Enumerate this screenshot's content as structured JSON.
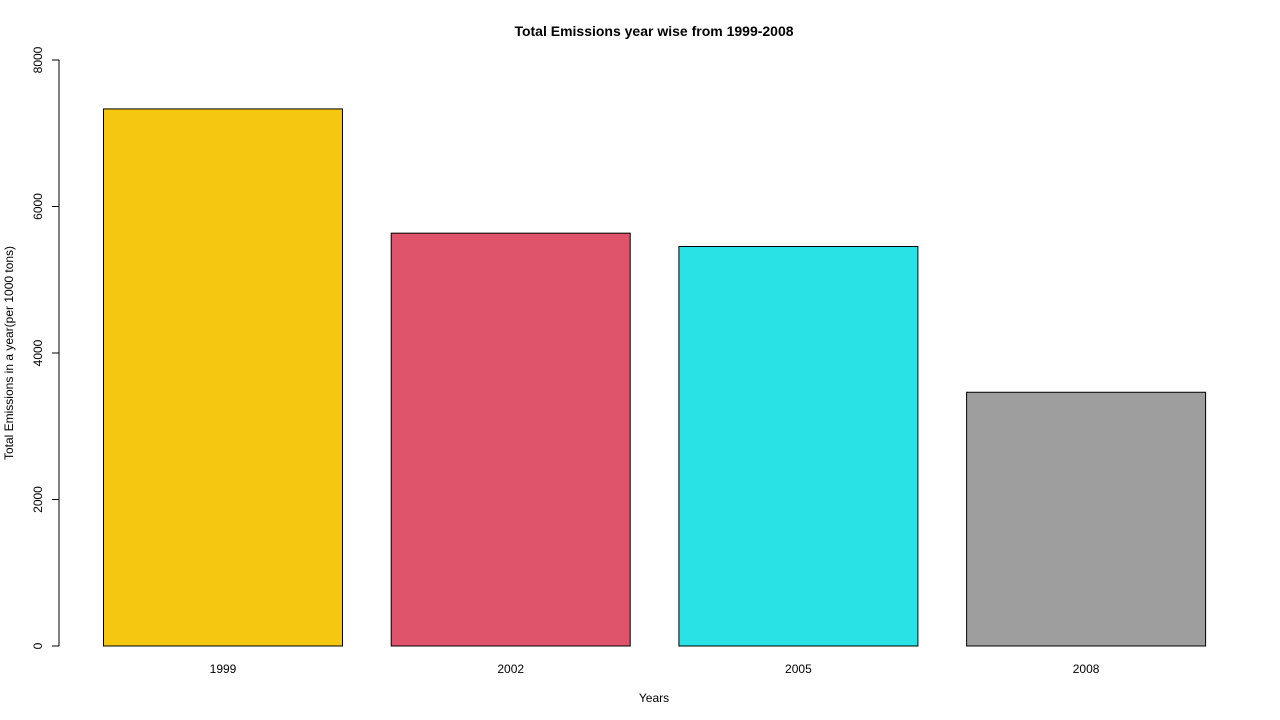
{
  "chart_data": {
    "type": "bar",
    "title": "Total Emissions year wise from 1999-2008",
    "xlabel": "Years",
    "ylabel": "Total Emissions in a year(per 1000 tons)",
    "categories": [
      "1999",
      "2002",
      "2005",
      "2008"
    ],
    "values": [
      7332,
      5636,
      5454,
      3464
    ],
    "colors": [
      "#F5C710",
      "#DF536B",
      "#28E2E5",
      "#9E9E9E"
    ],
    "ylim": [
      0,
      8000
    ],
    "yticks": [
      0,
      2000,
      4000,
      6000,
      8000
    ],
    "ytick_labels": [
      "0",
      "2000",
      "4000",
      "6000",
      "8000"
    ],
    "grid": false,
    "legend": "none"
  }
}
